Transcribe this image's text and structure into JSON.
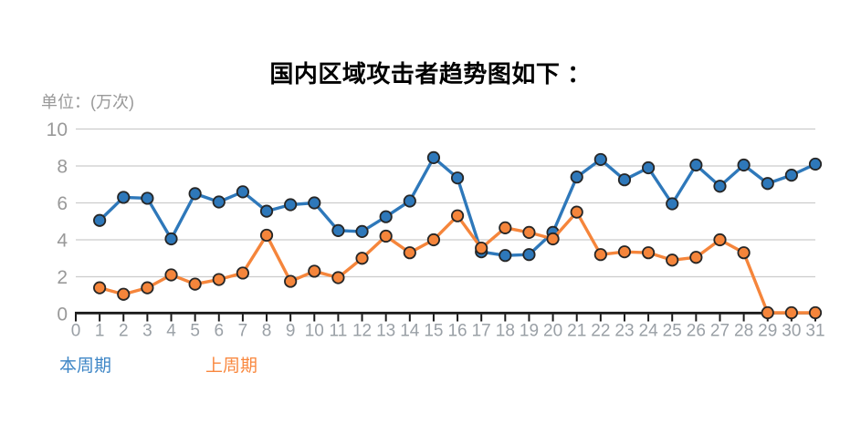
{
  "title": "国内区域攻击者趋势图如下 ：",
  "unit_label": "单位：(万次)",
  "legend": {
    "current": "本周期",
    "previous": "上周期"
  },
  "style": {
    "background": "#ffffff",
    "title_color": "#000000",
    "unit_color": "#999999",
    "grid_color": "#cccccc",
    "axis_color": "#1a1a1a",
    "x_label_color": "#9aa0a6",
    "y_label_color": "#999999",
    "marker_stroke": "#262626",
    "legend_current_color": "#3e86c6",
    "legend_previous_color": "#f9883f"
  },
  "chart_data": {
    "type": "line",
    "title": "国内区域攻击者趋势图如下 ：",
    "ylabel": "单位：(万次)",
    "xlabel": "",
    "xlim": [
      0,
      31
    ],
    "ylim": [
      0,
      10
    ],
    "grid": true,
    "legend_position": "bottom-left",
    "x_ticks": [
      0,
      1,
      2,
      3,
      4,
      5,
      6,
      7,
      8,
      9,
      10,
      11,
      12,
      13,
      14,
      15,
      16,
      17,
      18,
      19,
      20,
      21,
      22,
      23,
      24,
      25,
      26,
      27,
      28,
      29,
      30,
      31
    ],
    "y_ticks": [
      0,
      2,
      4,
      6,
      8,
      10
    ],
    "x": [
      1,
      2,
      3,
      4,
      5,
      6,
      7,
      8,
      9,
      10,
      11,
      12,
      13,
      14,
      15,
      16,
      17,
      18,
      19,
      20,
      21,
      22,
      23,
      24,
      25,
      26,
      27,
      28,
      29,
      30,
      31
    ],
    "series": [
      {
        "name": "本周期",
        "color": "#2e78ba",
        "values": [
          5.05,
          6.3,
          6.25,
          4.05,
          6.5,
          6.05,
          6.6,
          5.55,
          5.9,
          6.0,
          4.5,
          4.45,
          5.25,
          6.1,
          8.45,
          7.35,
          3.35,
          3.15,
          3.2,
          4.4,
          7.4,
          8.35,
          7.25,
          7.9,
          5.95,
          8.05,
          6.9,
          8.05,
          7.05,
          7.5,
          8.1
        ]
      },
      {
        "name": "上周期",
        "color": "#f5853b",
        "values": [
          1.4,
          1.05,
          1.4,
          2.1,
          1.6,
          1.85,
          2.2,
          4.25,
          1.75,
          2.3,
          1.95,
          3.0,
          4.2,
          3.3,
          4.0,
          5.3,
          3.55,
          4.65,
          4.4,
          4.05,
          5.5,
          3.2,
          3.35,
          3.3,
          2.9,
          3.05,
          4.0,
          3.3,
          0.05,
          0.05,
          0.05
        ]
      }
    ]
  }
}
